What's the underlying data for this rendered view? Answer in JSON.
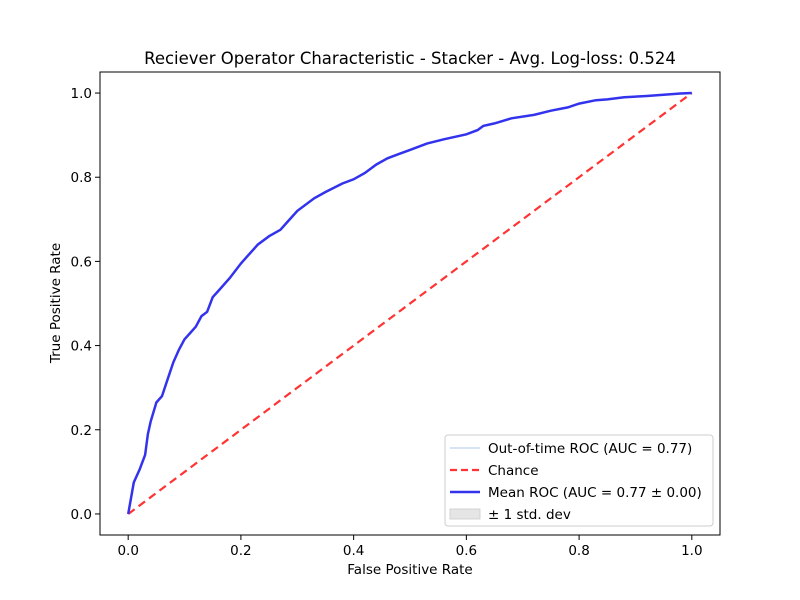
{
  "chart_data": {
    "type": "line",
    "title": "Reciever Operator Characteristic - Stacker - Avg. Log-loss: 0.524",
    "xlabel": "False Positive Rate",
    "ylabel": "True Positive Rate",
    "xlim": [
      -0.05,
      1.05
    ],
    "ylim": [
      -0.05,
      1.05
    ],
    "xticks": [
      "0.0",
      "0.2",
      "0.4",
      "0.6",
      "0.8",
      "1.0"
    ],
    "yticks": [
      "0.0",
      "0.2",
      "0.4",
      "0.6",
      "0.8",
      "1.0"
    ],
    "grid": false,
    "legend_position": "lower-right",
    "series": [
      {
        "name": "Out-of-time ROC (AUC = 0.77)",
        "color": "#aec7e8",
        "style": "solid-thin",
        "x": [
          0.0,
          0.01,
          0.02,
          0.03,
          0.035,
          0.04,
          0.05,
          0.06,
          0.07,
          0.08,
          0.09,
          0.1,
          0.11,
          0.12,
          0.13,
          0.14,
          0.15,
          0.16,
          0.18,
          0.2,
          0.21,
          0.23,
          0.25,
          0.27,
          0.28,
          0.3,
          0.33,
          0.35,
          0.38,
          0.4,
          0.42,
          0.44,
          0.46,
          0.48,
          0.5,
          0.53,
          0.56,
          0.6,
          0.62,
          0.63,
          0.65,
          0.68,
          0.72,
          0.75,
          0.78,
          0.8,
          0.83,
          0.85,
          0.88,
          0.92,
          0.95,
          0.98,
          1.0
        ],
        "y": [
          0.0,
          0.075,
          0.105,
          0.14,
          0.19,
          0.22,
          0.265,
          0.28,
          0.32,
          0.36,
          0.39,
          0.415,
          0.43,
          0.445,
          0.47,
          0.48,
          0.515,
          0.53,
          0.56,
          0.595,
          0.61,
          0.64,
          0.66,
          0.675,
          0.69,
          0.72,
          0.75,
          0.765,
          0.785,
          0.795,
          0.81,
          0.83,
          0.845,
          0.855,
          0.865,
          0.88,
          0.89,
          0.902,
          0.912,
          0.922,
          0.928,
          0.94,
          0.948,
          0.958,
          0.966,
          0.975,
          0.983,
          0.985,
          0.99,
          0.993,
          0.996,
          0.999,
          1.0
        ]
      },
      {
        "name": "Chance",
        "color": "#ff3333",
        "style": "dashed",
        "x": [
          0.0,
          1.0
        ],
        "y": [
          0.0,
          1.0
        ]
      },
      {
        "name": "Mean ROC (AUC = 0.77 ± 0.00)",
        "color": "#3333ee",
        "style": "solid-thick",
        "x": [
          0.0,
          0.01,
          0.02,
          0.03,
          0.035,
          0.04,
          0.05,
          0.06,
          0.07,
          0.08,
          0.09,
          0.1,
          0.11,
          0.12,
          0.13,
          0.14,
          0.15,
          0.16,
          0.18,
          0.2,
          0.21,
          0.23,
          0.25,
          0.27,
          0.28,
          0.3,
          0.33,
          0.35,
          0.38,
          0.4,
          0.42,
          0.44,
          0.46,
          0.48,
          0.5,
          0.53,
          0.56,
          0.6,
          0.62,
          0.63,
          0.65,
          0.68,
          0.72,
          0.75,
          0.78,
          0.8,
          0.83,
          0.85,
          0.88,
          0.92,
          0.95,
          0.98,
          1.0
        ],
        "y": [
          0.0,
          0.075,
          0.105,
          0.14,
          0.19,
          0.22,
          0.265,
          0.28,
          0.32,
          0.36,
          0.39,
          0.415,
          0.43,
          0.445,
          0.47,
          0.48,
          0.515,
          0.53,
          0.56,
          0.595,
          0.61,
          0.64,
          0.66,
          0.675,
          0.69,
          0.72,
          0.75,
          0.765,
          0.785,
          0.795,
          0.81,
          0.83,
          0.845,
          0.855,
          0.865,
          0.88,
          0.89,
          0.902,
          0.912,
          0.922,
          0.928,
          0.94,
          0.948,
          0.958,
          0.966,
          0.975,
          0.983,
          0.985,
          0.99,
          0.993,
          0.996,
          0.999,
          1.0
        ]
      }
    ],
    "legend": [
      {
        "label": "Out-of-time ROC (AUC = 0.77)",
        "kind": "line-thin",
        "color": "#aec7e8"
      },
      {
        "label": "Chance",
        "kind": "line-dashed",
        "color": "#ff3333"
      },
      {
        "label": "Mean ROC (AUC = 0.77 ± 0.00)",
        "kind": "line-thick",
        "color": "#3333ee"
      },
      {
        "label": "± 1 std. dev",
        "kind": "patch",
        "color": "#e5e5e5"
      }
    ]
  }
}
